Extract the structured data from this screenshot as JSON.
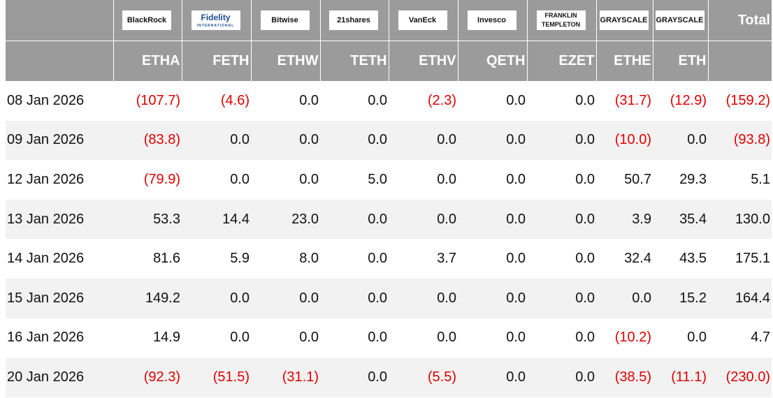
{
  "header": {
    "issuers": [
      "BlackRock",
      "Fidelity",
      "Bitwise",
      "21shares",
      "VanEck",
      "Invesco",
      "FRANKLIN TEMPLETON",
      "GRAYSCALE",
      "GRAYSCALE"
    ],
    "fidelity_sub": "INTERNATIONAL",
    "total": "Total",
    "tickers": [
      "ETHA",
      "FETH",
      "ETHW",
      "TETH",
      "ETHV",
      "QETH",
      "EZET",
      "ETHE",
      "ETH"
    ]
  },
  "table": {
    "rows": [
      [
        "08 Jan 2026",
        "(107.7)",
        "(4.6)",
        "0.0",
        "0.0",
        "(2.3)",
        "0.0",
        "0.0",
        "(31.7)",
        "(12.9)",
        "(159.2)"
      ],
      [
        "09 Jan 2026",
        "(83.8)",
        "0.0",
        "0.0",
        "0.0",
        "0.0",
        "0.0",
        "0.0",
        "(10.0)",
        "0.0",
        "(93.8)"
      ],
      [
        "12 Jan 2026",
        "(79.9)",
        "0.0",
        "0.0",
        "5.0",
        "0.0",
        "0.0",
        "0.0",
        "50.7",
        "29.3",
        "5.1"
      ],
      [
        "13 Jan 2026",
        "53.3",
        "14.4",
        "23.0",
        "0.0",
        "0.0",
        "0.0",
        "0.0",
        "3.9",
        "35.4",
        "130.0"
      ],
      [
        "14 Jan 2026",
        "81.6",
        "5.9",
        "8.0",
        "0.0",
        "3.7",
        "0.0",
        "0.0",
        "32.4",
        "43.5",
        "175.1"
      ],
      [
        "15 Jan 2026",
        "149.2",
        "0.0",
        "0.0",
        "0.0",
        "0.0",
        "0.0",
        "0.0",
        "0.0",
        "15.2",
        "164.4"
      ],
      [
        "16 Jan 2026",
        "14.9",
        "0.0",
        "0.0",
        "0.0",
        "0.0",
        "0.0",
        "0.0",
        "(10.2)",
        "0.0",
        "4.7"
      ],
      [
        "20 Jan 2026",
        "(92.3)",
        "(51.5)",
        "(31.1)",
        "0.0",
        "(5.5)",
        "0.0",
        "0.0",
        "(38.5)",
        "(11.1)",
        "(230.0)"
      ]
    ]
  }
}
